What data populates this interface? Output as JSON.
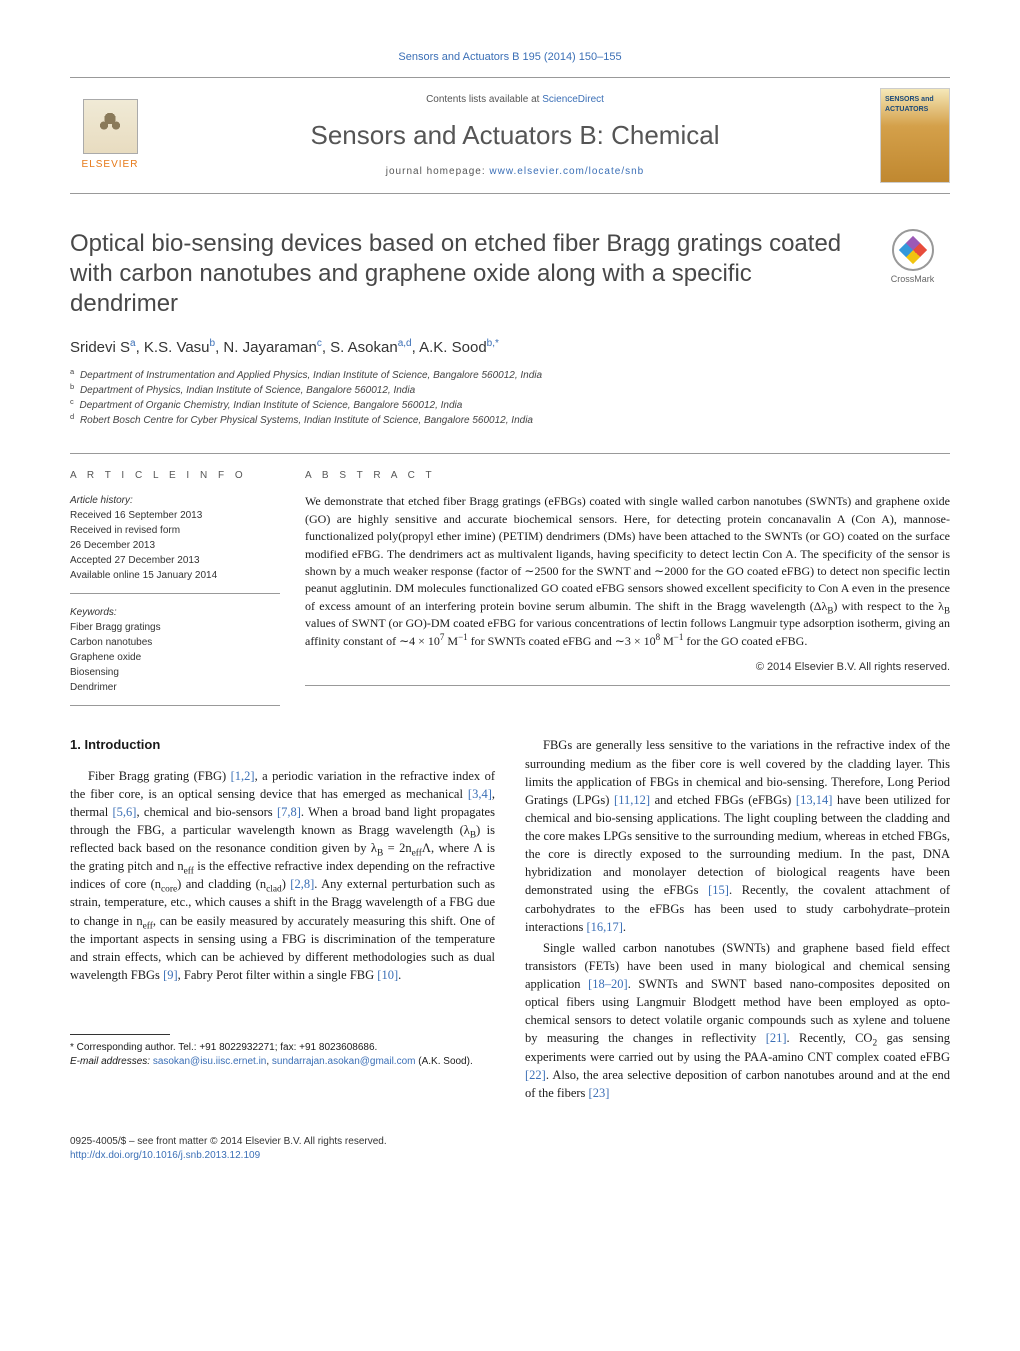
{
  "journal_ref": "Sensors and Actuators B 195 (2014) 150–155",
  "header": {
    "contents_prefix": "Contents lists available at ",
    "contents_link": "ScienceDirect",
    "journal_title": "Sensors and Actuators B: Chemical",
    "homepage_prefix": "journal homepage: ",
    "homepage_link": "www.elsevier.com/locate/snb",
    "publisher": "ELSEVIER",
    "cover_label": "SENSORS and ACTUATORS"
  },
  "crossmark_label": "CrossMark",
  "title": "Optical bio-sensing devices based on etched fiber Bragg gratings coated with carbon nanotubes and graphene oxide along with a specific dendrimer",
  "authors_html": "Sridevi S<sup>a</sup>, K.S. Vasu<sup>b</sup>, N. Jayaraman<sup>c</sup>, S. Asokan<sup>a,d</sup>, A.K. Sood<sup>b,*</sup>",
  "affiliations": [
    {
      "sup": "a",
      "text": "Department of Instrumentation and Applied Physics, Indian Institute of Science, Bangalore 560012, India"
    },
    {
      "sup": "b",
      "text": "Department of Physics, Indian Institute of Science, Bangalore 560012, India"
    },
    {
      "sup": "c",
      "text": "Department of Organic Chemistry, Indian Institute of Science, Bangalore 560012, India"
    },
    {
      "sup": "d",
      "text": "Robert Bosch Centre for Cyber Physical Systems, Indian Institute of Science, Bangalore 560012, India"
    }
  ],
  "article_info_label": "a r t i c l e   i n f o",
  "abstract_label": "a b s t r a c t",
  "history": {
    "heading": "Article history:",
    "lines": [
      "Received 16 September 2013",
      "Received in revised form",
      "26 December 2013",
      "Accepted 27 December 2013",
      "Available online 15 January 2014"
    ]
  },
  "keywords": {
    "heading": "Keywords:",
    "items": [
      "Fiber Bragg gratings",
      "Carbon nanotubes",
      "Graphene oxide",
      "Biosensing",
      "Dendrimer"
    ]
  },
  "abstract_html": "We demonstrate that etched fiber Bragg gratings (eFBGs) coated with single walled carbon nanotubes (SWNTs) and graphene oxide (GO) are highly sensitive and accurate biochemical sensors. Here, for detecting protein concanavalin A (Con A), mannose-functionalized poly(propyl ether imine) (PETIM) dendrimers (DMs) have been attached to the SWNTs (or GO) coated on the surface modified eFBG. The dendrimers act as multivalent ligands, having specificity to detect lectin Con A. The specificity of the sensor is shown by a much weaker response (factor of ∼2500 for the SWNT and ∼2000 for the GO coated eFBG) to detect non specific lectin peanut agglutinin. DM molecules functionalized GO coated eFBG sensors showed excellent specificity to Con A even in the presence of excess amount of an interfering protein bovine serum albumin. The shift in the Bragg wavelength (Δλ<sub>B</sub>) with respect to the λ<sub>B</sub> values of SWNT (or GO)-DM coated eFBG for various concentrations of lectin follows Langmuir type adsorption isotherm, giving an affinity constant of ∼4 × 10<sup>7</sup> M<sup>−1</sup> for SWNTs coated eFBG and ∼3 × 10<sup>8</sup> M<sup>−1</sup> for the GO coated eFBG.",
  "copyright": "© 2014 Elsevier B.V. All rights reserved.",
  "section1_heading": "1. Introduction",
  "col1_p1_html": "Fiber Bragg grating (FBG) <a>[1,2]</a>, a periodic variation in the refractive index of the fiber core, is an optical sensing device that has emerged as mechanical <a>[3,4]</a>, thermal <a>[5,6]</a>, chemical and bio-sensors <a>[7,8]</a>. When a broad band light propagates through the FBG, a particular wavelength known as Bragg wavelength (λ<sub>B</sub>) is reflected back based on the resonance condition given by λ<sub>B</sub> = 2n<sub>eff</sub>Λ, where Λ is the grating pitch and n<sub>eff</sub> is the effective refractive index depending on the refractive indices of core (n<sub>core</sub>) and cladding (n<sub>clad</sub>) <a>[2,8]</a>. Any external perturbation such as strain, temperature, etc., which causes a shift in the Bragg wavelength of a FBG due to change in n<sub>eff</sub>, can be easily measured by accurately measuring this shift. One of the important aspects in sensing using a FBG is discrimination of the temperature and strain effects, which can be achieved by different methodologies such as dual wavelength FBGs <a>[9]</a>, Fabry Perot filter within a single FBG <a>[10]</a>.",
  "col2_p1_html": "FBGs are generally less sensitive to the variations in the refractive index of the surrounding medium as the fiber core is well covered by the cladding layer. This limits the application of FBGs in chemical and bio-sensing. Therefore, Long Period Gratings (LPGs) <a>[11,12]</a> and etched FBGs (eFBGs) <a>[13,14]</a> have been utilized for chemical and bio-sensing applications. The light coupling between the cladding and the core makes LPGs sensitive to the surrounding medium, whereas in etched FBGs, the core is directly exposed to the surrounding medium. In the past, DNA hybridization and monolayer detection of biological reagents have been demonstrated using the eFBGs <a>[15]</a>. Recently, the covalent attachment of carbohydrates to the eFBGs has been used to study carbohydrate–protein interactions <a>[16,17]</a>.",
  "col2_p2_html": "Single walled carbon nanotubes (SWNTs) and graphene based field effect transistors (FETs) have been used in many biological and chemical sensing application <a>[18–20]</a>. SWNTs and SWNT based nano-composites deposited on optical fibers using Langmuir Blodgett method have been employed as opto-chemical sensors to detect volatile organic compounds such as xylene and toluene by measuring the changes in reflectivity <a>[21]</a>. Recently, CO<sub>2</sub> gas sensing experiments were carried out by using the PAA-amino CNT complex coated eFBG <a>[22]</a>. Also, the area selective deposition of carbon nanotubes around and at the end of the fibers <a>[23]</a>",
  "footnote": {
    "corr": "* Corresponding author. Tel.: +91 8022932271; fax: +91 8023608686.",
    "email_label": "E-mail addresses: ",
    "email1": "sasokan@isu.iisc.ernet.in",
    "email2": "sundarrajan.asokan@gmail.com",
    "email_tail": " (A.K. Sood)."
  },
  "bottom": {
    "issn": "0925-4005/$ – see front matter © 2014 Elsevier B.V. All rights reserved.",
    "doi": "http://dx.doi.org/10.1016/j.snb.2013.12.109"
  },
  "colors": {
    "link": "#3b6fb6",
    "publisher_orange": "#e67817",
    "rule": "#999999"
  }
}
